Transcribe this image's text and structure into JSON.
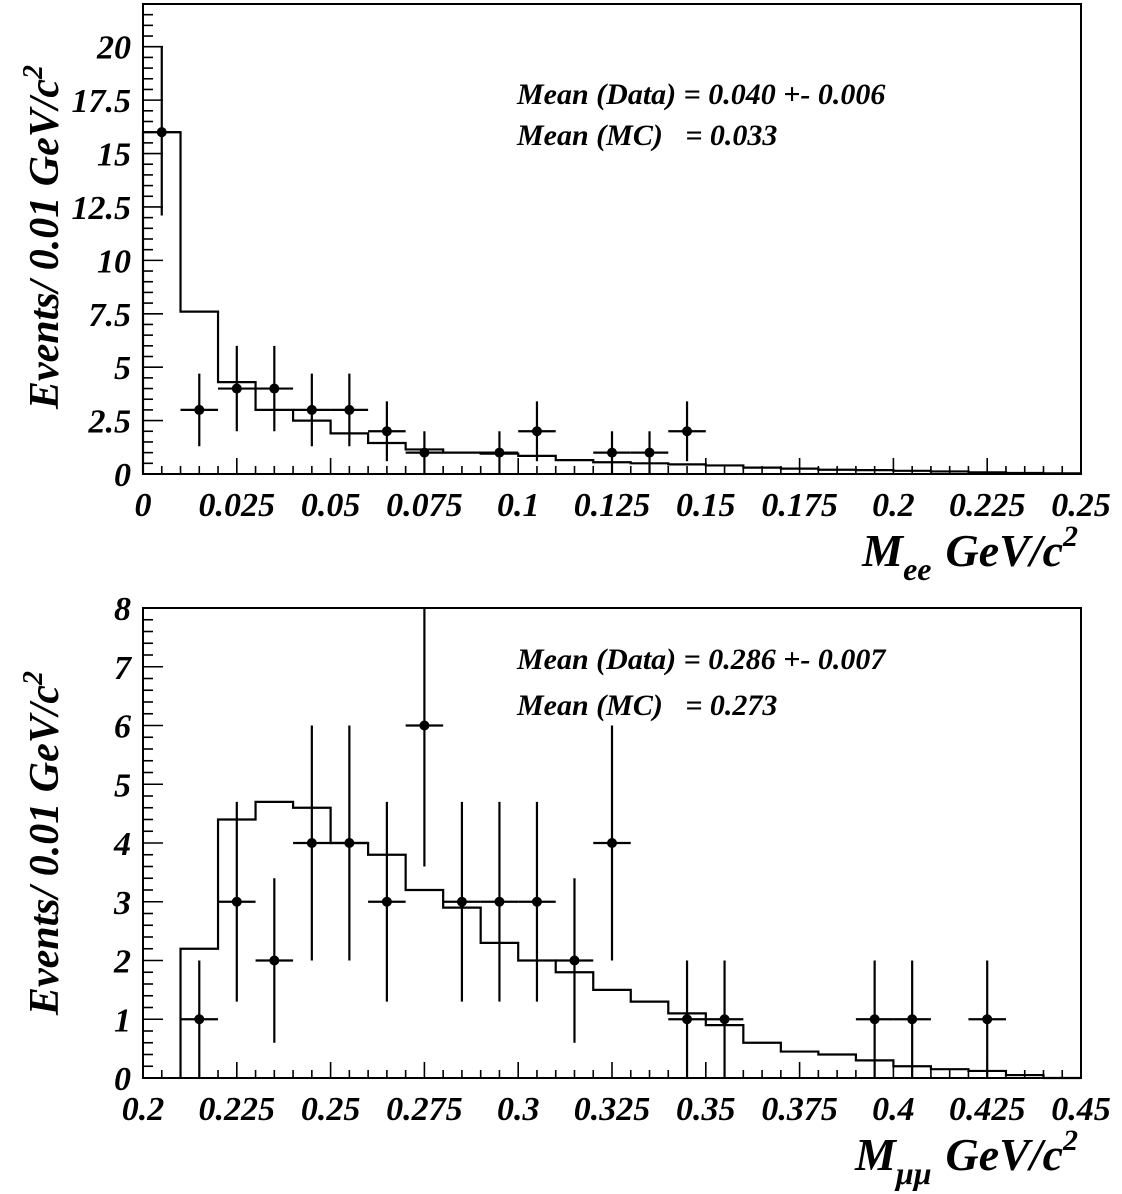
{
  "chart_data": [
    {
      "type": "histogram",
      "x_range": [
        0,
        0.25
      ],
      "y_range": [
        0,
        22
      ],
      "bin_width": 0.01,
      "x_ticks": [
        "0",
        "0.025",
        "0.05",
        "0.075",
        "0.1",
        "0.125",
        "0.15",
        "0.175",
        "0.2",
        "0.225",
        "0.25"
      ],
      "y_ticks": [
        "0",
        "2.5",
        "5",
        "7.5",
        "10",
        "12.5",
        "15",
        "17.5",
        "20"
      ],
      "ylabel": "Events/ 0.01 GeV/c",
      "ylabel_sup": "2",
      "xlabel_main": "M",
      "xlabel_sub": "ee",
      "xlabel_unit": "GeV/c",
      "xlabel_sup": "2",
      "stats": [
        {
          "label": "Mean (Data) = 0.040 +- 0.006"
        },
        {
          "label": "Mean (MC)   = 0.033"
        }
      ],
      "data_points": [
        {
          "x": 0.005,
          "y": 16,
          "ylo": 12.1,
          "yhi": 20.0
        },
        {
          "x": 0.015,
          "y": 3,
          "ylo": 1.3,
          "yhi": 4.7
        },
        {
          "x": 0.025,
          "y": 4,
          "ylo": 2.0,
          "yhi": 6.0
        },
        {
          "x": 0.035,
          "y": 4,
          "ylo": 2.0,
          "yhi": 6.0
        },
        {
          "x": 0.045,
          "y": 3,
          "ylo": 1.3,
          "yhi": 4.7
        },
        {
          "x": 0.055,
          "y": 3,
          "ylo": 1.3,
          "yhi": 4.7
        },
        {
          "x": 0.065,
          "y": 2,
          "ylo": 0.6,
          "yhi": 3.4
        },
        {
          "x": 0.075,
          "y": 1,
          "ylo": 0.0,
          "yhi": 2.0
        },
        {
          "x": 0.095,
          "y": 1,
          "ylo": 0.0,
          "yhi": 2.0
        },
        {
          "x": 0.105,
          "y": 2,
          "ylo": 0.6,
          "yhi": 3.4
        },
        {
          "x": 0.125,
          "y": 1,
          "ylo": 0.0,
          "yhi": 2.0
        },
        {
          "x": 0.135,
          "y": 1,
          "ylo": 0.0,
          "yhi": 2.0
        },
        {
          "x": 0.145,
          "y": 2,
          "ylo": 0.6,
          "yhi": 3.4
        }
      ],
      "mc_hist": [
        16,
        7.6,
        4.3,
        3.0,
        2.5,
        1.9,
        1.45,
        1.15,
        1.0,
        0.95,
        0.85,
        0.65,
        0.55,
        0.5,
        0.45,
        0.4,
        0.3,
        0.25,
        0.2,
        0.18,
        0.15,
        0.12,
        0.08,
        0.05,
        0.03
      ]
    },
    {
      "type": "histogram",
      "x_range": [
        0.2,
        0.45
      ],
      "y_range": [
        0,
        8
      ],
      "bin_width": 0.01,
      "x_ticks": [
        "0.2",
        "0.225",
        "0.25",
        "0.275",
        "0.3",
        "0.325",
        "0.35",
        "0.375",
        "0.4",
        "0.425",
        "0.45"
      ],
      "y_ticks": [
        "0",
        "1",
        "2",
        "3",
        "4",
        "5",
        "6",
        "7",
        "8"
      ],
      "ylabel": "Events/ 0.01 GeV/c",
      "ylabel_sup": "2",
      "xlabel_main": "M",
      "xlabel_sub": "μμ",
      "xlabel_unit": "GeV/c",
      "xlabel_sup": "2",
      "stats": [
        {
          "label": "Mean (Data) = 0.286 +- 0.007"
        },
        {
          "label": "Mean (MC)   = 0.273"
        }
      ],
      "data_points": [
        {
          "x": 0.215,
          "y": 1,
          "ylo": 0.0,
          "yhi": 2.0
        },
        {
          "x": 0.225,
          "y": 3,
          "ylo": 1.3,
          "yhi": 4.7
        },
        {
          "x": 0.235,
          "y": 2,
          "ylo": 0.6,
          "yhi": 3.4
        },
        {
          "x": 0.245,
          "y": 4,
          "ylo": 2.0,
          "yhi": 6.0
        },
        {
          "x": 0.255,
          "y": 4,
          "ylo": 2.0,
          "yhi": 6.0
        },
        {
          "x": 0.265,
          "y": 3,
          "ylo": 1.3,
          "yhi": 4.7
        },
        {
          "x": 0.275,
          "y": 6,
          "ylo": 3.6,
          "yhi": 8.0
        },
        {
          "x": 0.285,
          "y": 3,
          "ylo": 1.3,
          "yhi": 4.7
        },
        {
          "x": 0.295,
          "y": 3,
          "ylo": 1.3,
          "yhi": 4.7
        },
        {
          "x": 0.305,
          "y": 3,
          "ylo": 1.3,
          "yhi": 4.7
        },
        {
          "x": 0.315,
          "y": 2,
          "ylo": 0.6,
          "yhi": 3.4
        },
        {
          "x": 0.325,
          "y": 4,
          "ylo": 2.0,
          "yhi": 6.0
        },
        {
          "x": 0.345,
          "y": 1,
          "ylo": 0.0,
          "yhi": 2.0
        },
        {
          "x": 0.355,
          "y": 1,
          "ylo": 0.0,
          "yhi": 2.0
        },
        {
          "x": 0.395,
          "y": 1,
          "ylo": 0.0,
          "yhi": 2.0
        },
        {
          "x": 0.405,
          "y": 1,
          "ylo": 0.0,
          "yhi": 2.0
        },
        {
          "x": 0.425,
          "y": 1,
          "ylo": 0.0,
          "yhi": 2.0
        }
      ],
      "mc_bins_start": 0.21,
      "mc_hist": [
        2.2,
        4.4,
        4.7,
        4.6,
        4.0,
        3.8,
        3.2,
        2.9,
        2.3,
        2.0,
        1.8,
        1.5,
        1.3,
        1.1,
        0.9,
        0.6,
        0.45,
        0.4,
        0.3,
        0.2,
        0.15,
        0.12,
        0.05,
        0.0
      ]
    }
  ]
}
